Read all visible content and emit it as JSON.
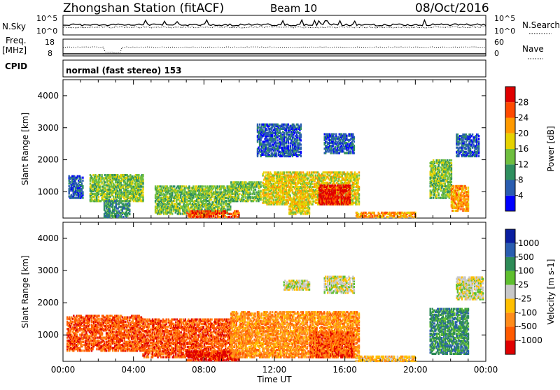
{
  "header": {
    "station": "Zhongshan Station (fitACF)",
    "beam": "Beam 10",
    "date": "08/Oct/2016"
  },
  "aux_panels": {
    "nsky_label": "N.Sky",
    "nsky_ticks": [
      "10^5",
      "10^0"
    ],
    "nsearch_label": "N.Search",
    "nsearch_ticks": [
      "10^5",
      "10^0"
    ],
    "freq_label": "Freq.",
    "freq_unit": "[MHz]",
    "freq_ticks": [
      "18",
      "8"
    ],
    "nave_label": "Nave",
    "nave_ticks": [
      "60",
      "0"
    ],
    "cpid_label": "CPID",
    "cpid_text": "normal (fast stereo) 153"
  },
  "chart_data": [
    {
      "type": "heatmap",
      "name": "power",
      "ylabel": "Slant Range [km]",
      "yticks": [
        "4000",
        "3000",
        "2000",
        "1000"
      ],
      "ylim": [
        180,
        4500
      ],
      "colorbar_label": "Power [dB]",
      "colorbar_ticks": [
        "28",
        "24",
        "20",
        "16",
        "12",
        "8",
        "4"
      ],
      "colors": [
        "#0000ff",
        "#2a5db0",
        "#2f8f5f",
        "#6fbf3f",
        "#e6d200",
        "#ff9a00",
        "#ff4a00",
        "#e00000"
      ],
      "regions": [
        {
          "t0": 0.3,
          "t1": 1.1,
          "r0": 800,
          "r1": 1500,
          "level": 1
        },
        {
          "t0": 1.5,
          "t1": 4.5,
          "r0": 700,
          "r1": 1550,
          "level": 3
        },
        {
          "t0": 2.3,
          "t1": 3.8,
          "r0": 200,
          "r1": 700,
          "level": 2
        },
        {
          "t0": 5.2,
          "t1": 9.5,
          "r0": 300,
          "r1": 1200,
          "level": 3
        },
        {
          "t0": 7.0,
          "t1": 10.0,
          "r0": 200,
          "r1": 400,
          "level": 6
        },
        {
          "t0": 9.5,
          "t1": 11.2,
          "r0": 700,
          "r1": 1300,
          "level": 3
        },
        {
          "t0": 11.3,
          "t1": 16.8,
          "r0": 600,
          "r1": 1600,
          "level": 4
        },
        {
          "t0": 14.5,
          "t1": 16.3,
          "r0": 600,
          "r1": 1200,
          "level": 7
        },
        {
          "t0": 12.8,
          "t1": 14.0,
          "r0": 300,
          "r1": 700,
          "level": 4
        },
        {
          "t0": 16.6,
          "t1": 20.0,
          "r0": 200,
          "r1": 350,
          "level": 5
        },
        {
          "t0": 14.8,
          "t1": 16.5,
          "r0": 2200,
          "r1": 2800,
          "level": 1
        },
        {
          "t0": 11.0,
          "t1": 13.5,
          "r0": 2100,
          "r1": 3100,
          "level": 1
        },
        {
          "t0": 20.8,
          "t1": 22.0,
          "r0": 800,
          "r1": 2000,
          "level": 3
        },
        {
          "t0": 22.0,
          "t1": 23.0,
          "r0": 400,
          "r1": 1200,
          "level": 5
        },
        {
          "t0": 22.3,
          "t1": 23.6,
          "r0": 2100,
          "r1": 2800,
          "level": 1
        }
      ]
    },
    {
      "type": "heatmap",
      "name": "velocity",
      "ylabel": "Slant Range [km]",
      "yticks": [
        "4000",
        "3000",
        "2000",
        "1000"
      ],
      "ylim": [
        180,
        4500
      ],
      "xticks": [
        "00:00",
        "04:00",
        "08:00",
        "12:00",
        "16:00",
        "20:00",
        "00:00"
      ],
      "xlabel": "Time UT",
      "colorbar_label": "Velocity [m s-1]",
      "colorbar_ticks": [
        "1000",
        "500",
        "100",
        "25",
        "-25",
        "-100",
        "-500",
        "-1000"
      ],
      "colors": [
        "#e00000",
        "#ff5a00",
        "#ff8c1a",
        "#ffbf00",
        "#c8c8c8",
        "#5fbf2f",
        "#2e8b57",
        "#2a5db0",
        "#0a1ea0"
      ],
      "regions": [
        {
          "t0": 0.2,
          "t1": 4.5,
          "r0": 500,
          "r1": 1600,
          "level": 1
        },
        {
          "t0": 4.5,
          "t1": 9.5,
          "r0": 300,
          "r1": 1500,
          "level": 1
        },
        {
          "t0": 7.0,
          "t1": 10.0,
          "r0": 200,
          "r1": 500,
          "level": 0
        },
        {
          "t0": 9.5,
          "t1": 16.8,
          "r0": 300,
          "r1": 1700,
          "level": 2
        },
        {
          "t0": 14.0,
          "t1": 16.5,
          "r0": 300,
          "r1": 1100,
          "level": 1
        },
        {
          "t0": 16.6,
          "t1": 20.0,
          "r0": 180,
          "r1": 320,
          "level": 3
        },
        {
          "t0": 14.8,
          "t1": 16.5,
          "r0": 2300,
          "r1": 2800,
          "level": 4
        },
        {
          "t0": 12.5,
          "t1": 14.0,
          "r0": 2400,
          "r1": 2700,
          "level": 4
        },
        {
          "t0": 20.8,
          "t1": 23.0,
          "r0": 400,
          "r1": 1800,
          "level": 6
        },
        {
          "t0": 22.3,
          "t1": 23.8,
          "r0": 2100,
          "r1": 2800,
          "level": 4
        }
      ]
    }
  ]
}
